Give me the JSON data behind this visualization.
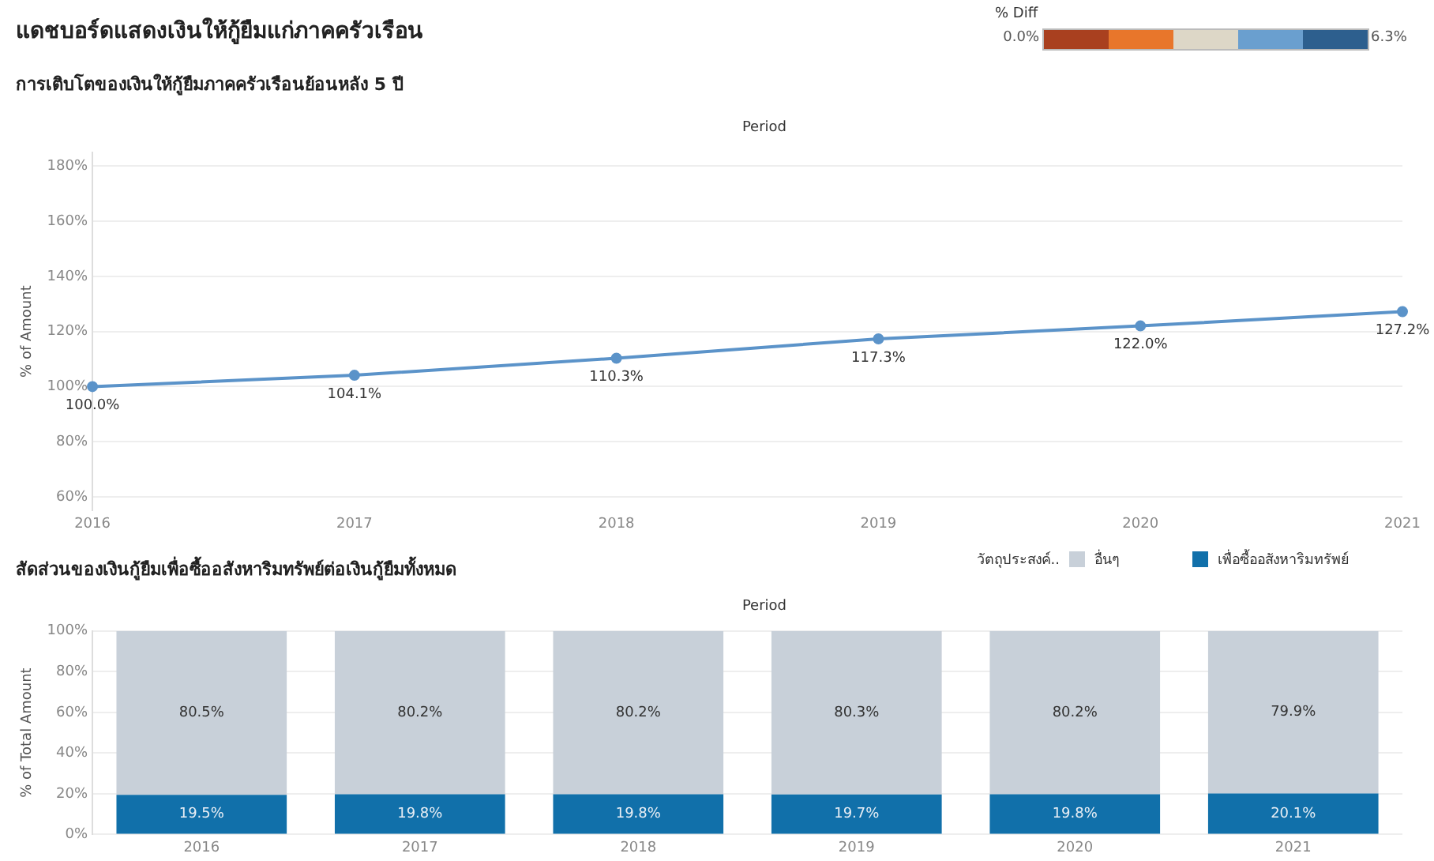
{
  "chart_data": [
    {
      "type": "line",
      "title": "แดชบอร์ดแสดงเงินให้กู้ยืมแก่ภาคครัวเรือน",
      "subtitle": "การเติบโตของเงินให้กู้ยืมภาคครัวเรือนย้อนหลัง 5 ปี",
      "xlabel": "Period",
      "ylabel": "% of Amount",
      "categories": [
        "2016",
        "2017",
        "2018",
        "2019",
        "2020",
        "2021"
      ],
      "values": [
        100.0,
        104.1,
        110.3,
        117.3,
        122.0,
        127.2
      ],
      "value_labels": [
        "100.0%",
        "104.1%",
        "110.3%",
        "117.3%",
        "122.0%",
        "127.2%"
      ],
      "color": "#5b93c9",
      "clabel": "% Diff",
      "annotations": [
        "0.0%",
        "6.3%"
      ],
      "ylim": [
        55,
        185
      ],
      "yticks": [
        {
          "value": 60,
          "label": "60%"
        },
        {
          "value": 80,
          "label": "80%"
        },
        {
          "value": 100,
          "label": "100%"
        },
        {
          "value": 120,
          "label": "120%"
        },
        {
          "value": 140,
          "label": "140%"
        },
        {
          "value": 160,
          "label": "160%"
        },
        {
          "value": 180,
          "label": "180%"
        }
      ],
      "grid": "y",
      "marker": "circle"
    },
    {
      "type": "bar",
      "stacked": true,
      "title": "สัดส่วนของเงินกู้ยืมเพื่อซื้ออสังหาริมทรัพย์ต่อเงินกู้ยืมทั้งหมด",
      "xlabel": "Period",
      "ylabel": "% of Total Amount",
      "legend_title": "วัตถุประสงค์..",
      "legend": "top right",
      "categories": [
        "2016",
        "2017",
        "2018",
        "2019",
        "2020",
        "2021"
      ],
      "series": [
        {
          "name": "เพื่อซื้ออสังหาริมทรัพย์",
          "color": "#1170aa",
          "values": [
            19.5,
            19.8,
            19.8,
            19.7,
            19.8,
            20.1
          ],
          "value_labels": [
            "19.5%",
            "19.8%",
            "19.8%",
            "19.7%",
            "19.8%",
            "20.1%"
          ]
        },
        {
          "name": "อื่นๆ",
          "color": "#c8d0d9",
          "values": [
            80.5,
            80.2,
            80.2,
            80.3,
            80.2,
            79.9
          ],
          "value_labels": [
            "80.5%",
            "80.2%",
            "80.2%",
            "80.3%",
            "80.2%",
            "79.9%"
          ]
        }
      ],
      "ylim": [
        0,
        100
      ],
      "yticks": [
        {
          "value": 0,
          "label": "0%"
        },
        {
          "value": 20,
          "label": "20%"
        },
        {
          "value": 40,
          "label": "40%"
        },
        {
          "value": 60,
          "label": "60%"
        },
        {
          "value": 80,
          "label": "80%"
        },
        {
          "value": 100,
          "label": "100%"
        }
      ],
      "grid": "y"
    }
  ]
}
